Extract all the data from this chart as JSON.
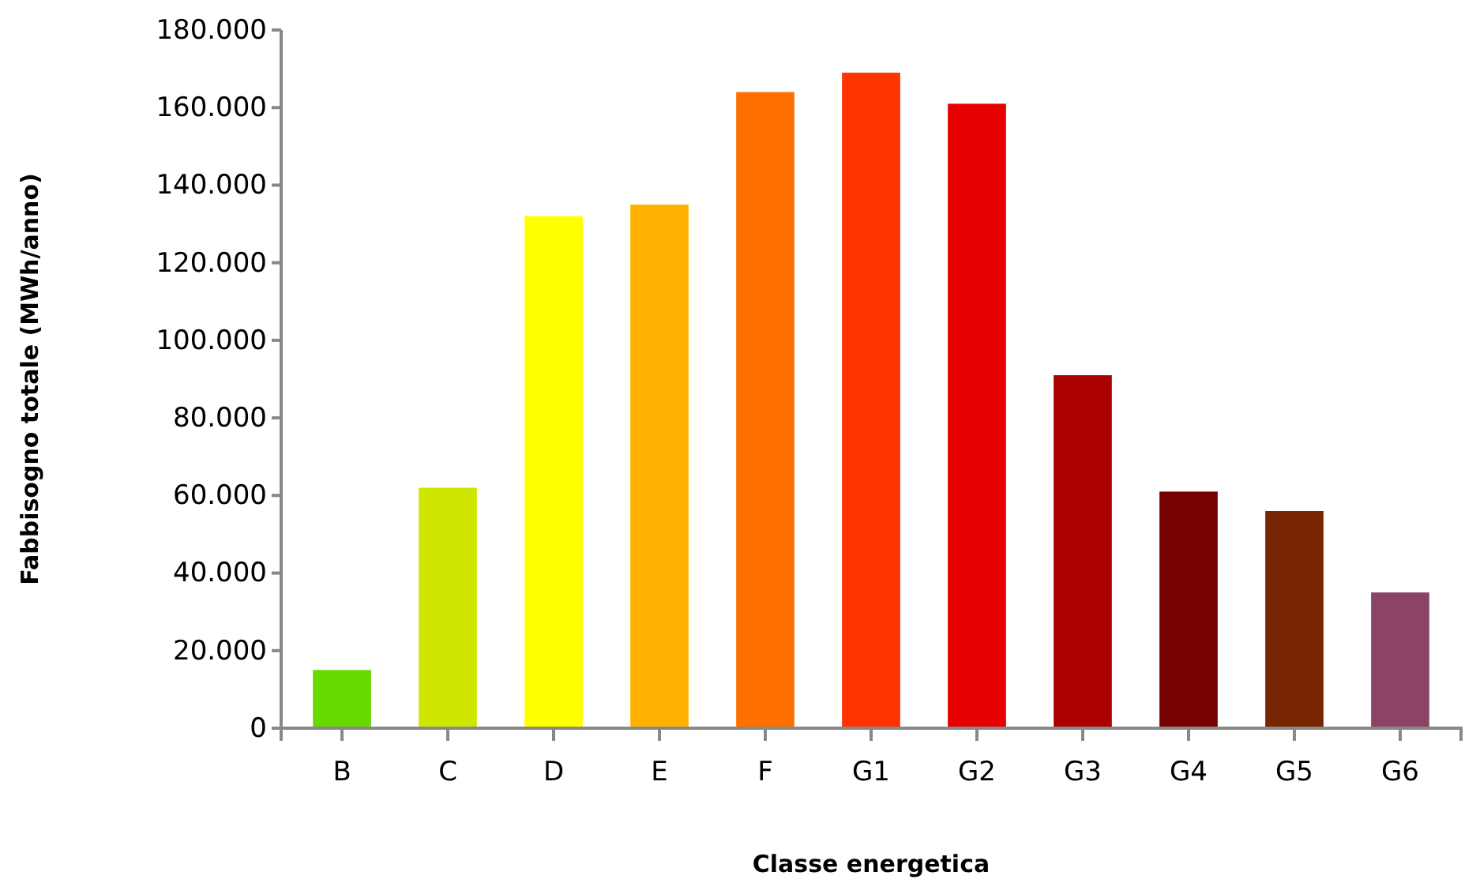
{
  "chart_data": {
    "type": "bar",
    "xlabel": "Classe energetica",
    "ylabel": "Fabbisogno totale (MWh/anno)",
    "categories": [
      "B",
      "C",
      "D",
      "E",
      "F",
      "G1",
      "G2",
      "G3",
      "G4",
      "G5",
      "G6"
    ],
    "values": [
      15000,
      62000,
      132000,
      135000,
      164000,
      169000,
      161000,
      91000,
      61000,
      56000,
      35000
    ],
    "colors": [
      "#66d900",
      "#cfe600",
      "#ffff00",
      "#ffb300",
      "#ff6f00",
      "#ff3300",
      "#e60000",
      "#aa0000",
      "#770000",
      "#772500",
      "#8c4466"
    ],
    "ylim": [
      0,
      180000
    ],
    "yticks": [
      0,
      {
        "value": 20000,
        "label": "20.000"
      },
      {
        "value": 40000,
        "label": "40.000"
      },
      {
        "value": 60000,
        "label": "60.000"
      },
      {
        "value": 80000,
        "label": "80.000"
      },
      {
        "value": 100000,
        "label": "100.000"
      },
      {
        "value": 120000,
        "label": "120.000"
      },
      {
        "value": 140000,
        "label": "140.000"
      },
      {
        "value": 160000,
        "label": "160.000"
      },
      {
        "value": 180000,
        "label": "180.000"
      }
    ],
    "grid": false
  }
}
